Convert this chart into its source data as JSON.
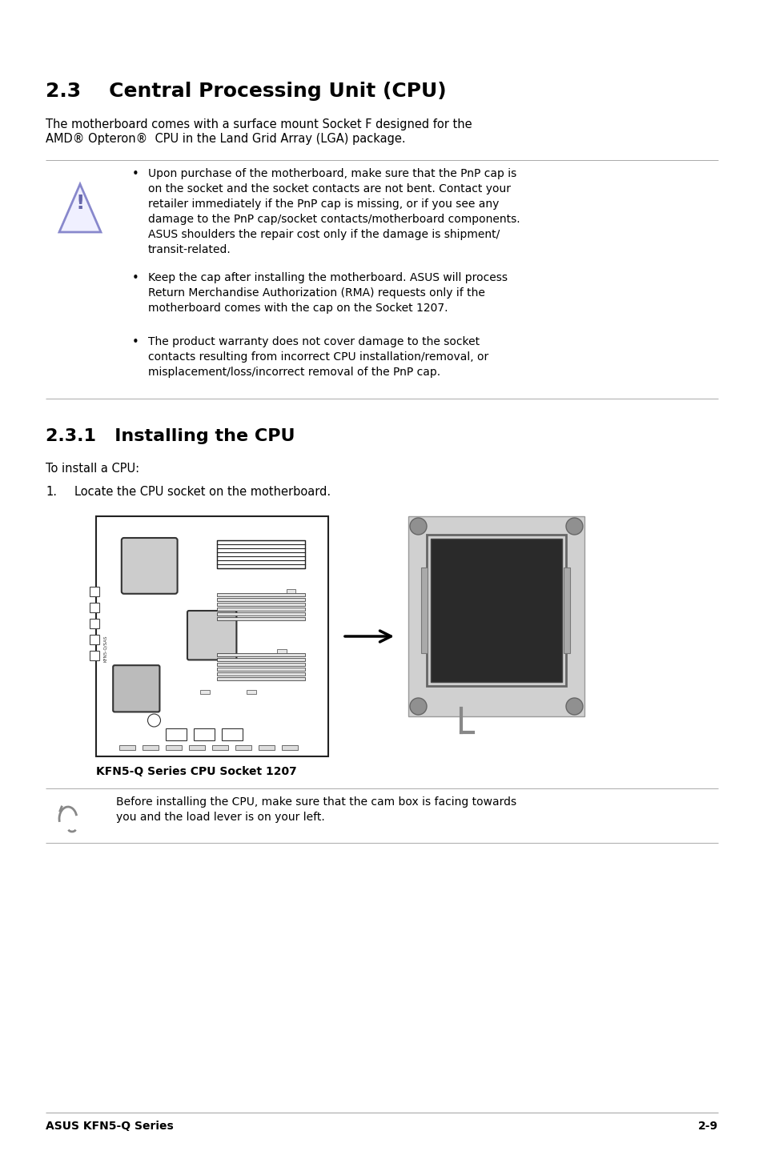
{
  "bg_color": "#ffffff",
  "title_23": "2.3    Central Processing Unit (CPU)",
  "intro_line1": "The motherboard comes with a surface mount Socket F designed for the",
  "intro_line2": "AMD® Opteron®  CPU in the Land Grid Array (LGA) package.",
  "warning_bullet1": "Upon purchase of the motherboard, make sure that the PnP cap is\non the socket and the socket contacts are not bent. Contact your\nretailer immediately if the PnP cap is missing, or if you see any\ndamage to the PnP cap/socket contacts/motherboard components.\nASUS shoulders the repair cost only if the damage is shipment/\ntransit-related.",
  "warning_bullet2": "Keep the cap after installing the motherboard. ASUS will process\nReturn Merchandise Authorization (RMA) requests only if the\nmotherboard comes with the cap on the Socket 1207.",
  "warning_bullet3": "The product warranty does not cover damage to the socket\ncontacts resulting from incorrect CPU installation/removal, or\nmisplacement/loss/incorrect removal of the PnP cap.",
  "title_231": "2.3.1   Installing the CPU",
  "install_intro": "To install a CPU:",
  "step1_num": "1.",
  "step1_text": "Locate the CPU socket on the motherboard.",
  "caption": "KFN5-Q Series CPU Socket 1207",
  "note_text": "Before installing the CPU, make sure that the cam box is facing towards\nyou and the load lever is on your left.",
  "footer_left": "ASUS KFN5-Q Series",
  "footer_right": "2-9",
  "line_color": "#aaaaaa",
  "text_color": "#000000",
  "warn_tri_edge": "#8888cc",
  "warn_tri_fill": "#f0f0ff",
  "warn_excl": "#6666aa"
}
